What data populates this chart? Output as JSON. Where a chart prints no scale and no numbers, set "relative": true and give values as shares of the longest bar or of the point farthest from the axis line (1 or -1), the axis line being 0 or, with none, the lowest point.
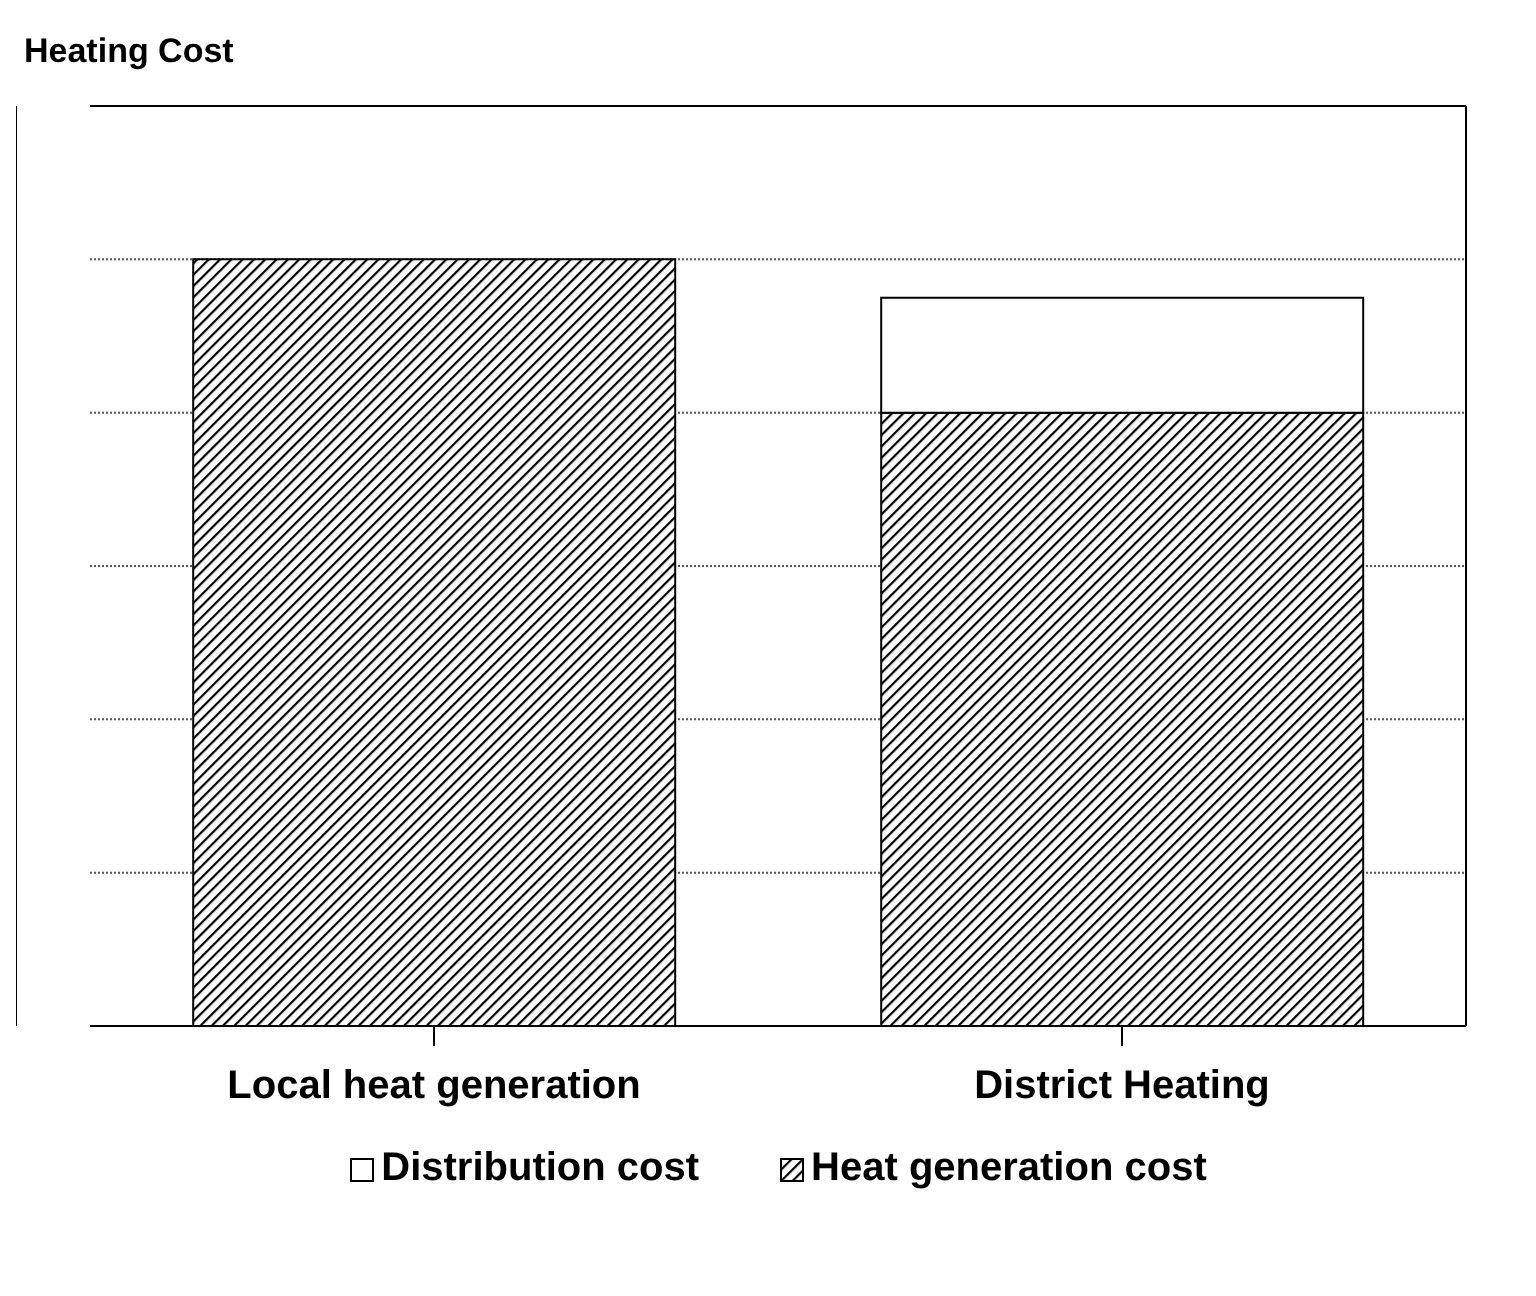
{
  "chart_data": {
    "type": "bar",
    "title": "Heating Cost",
    "categories": [
      "Local heat generation",
      "District Heating"
    ],
    "stacked": true,
    "relative": true,
    "grid": "y",
    "legend": "bottom",
    "series": [
      {
        "name": "Heat generation cost",
        "color": "#000000",
        "values": [
          1,
          0.8
        ]
      },
      {
        "name": "Distribution cost",
        "color": "#ffffff",
        "values": [
          null,
          0.15
        ]
      }
    ]
  }
}
